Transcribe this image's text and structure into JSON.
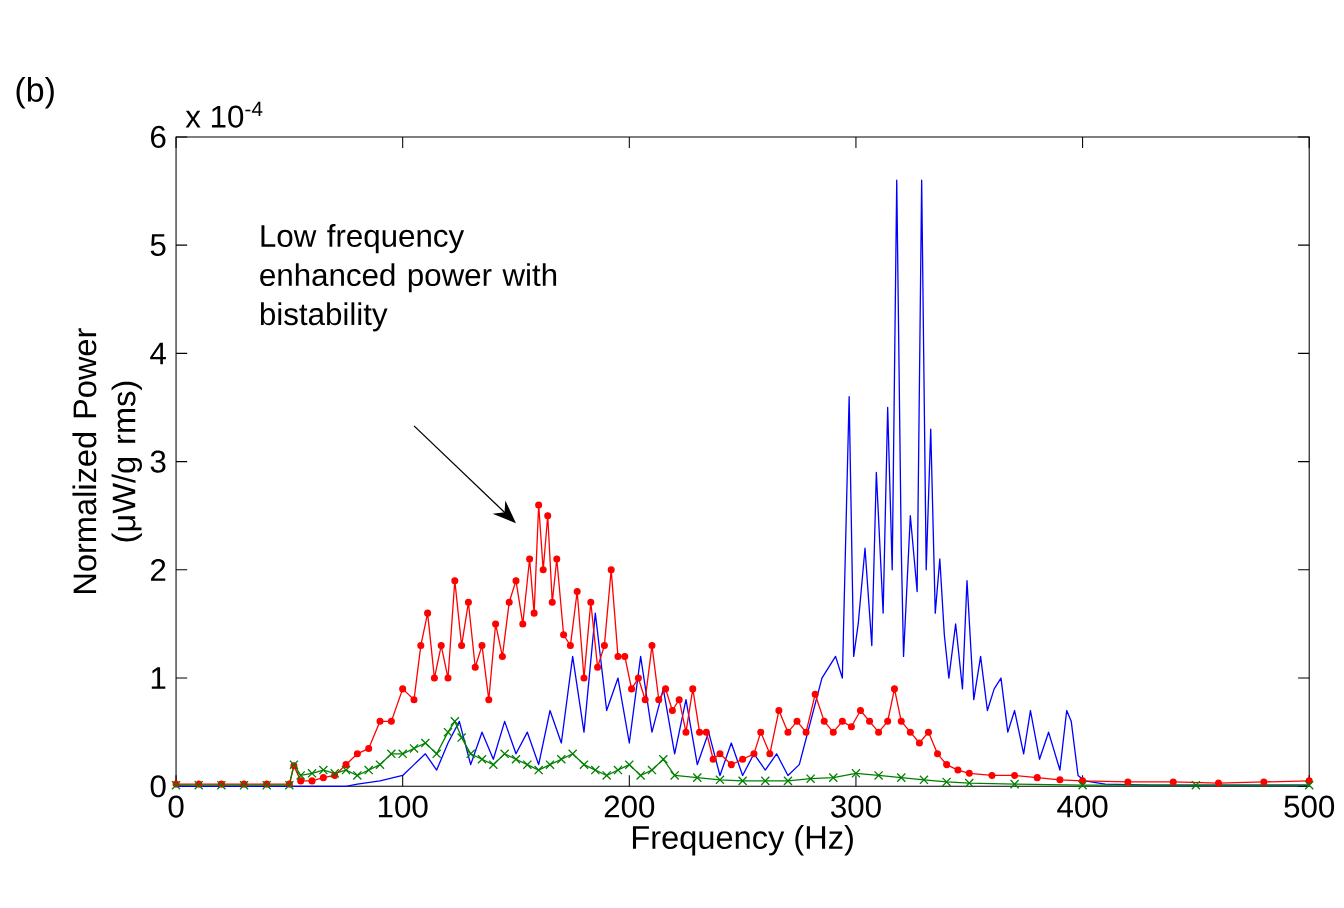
{
  "chart_data": {
    "type": "line",
    "title": "(b)",
    "xlabel": "Frequency (Hz)",
    "ylabel": "Normalized Power (μW/g rms)",
    "annotations": [
      "Low frequency enhanced power with bistability",
      "x 10$^{-4}$"
    ],
    "xlim": [
      0,
      500
    ],
    "ylim": [
      0,
      6
    ],
    "xticks": [
      0,
      100,
      200,
      300,
      400,
      500
    ],
    "yticks": [
      0,
      1,
      2,
      3,
      4,
      5,
      6
    ],
    "grid": false,
    "line_style": "solid",
    "series": [
      {
        "color": "#0000ff",
        "marker": "none",
        "x": [
          0,
          75,
          80,
          90,
          100,
          105,
          110,
          115,
          120,
          125,
          130,
          135,
          140,
          145,
          150,
          155,
          160,
          165,
          170,
          175,
          180,
          185,
          190,
          195,
          200,
          205,
          210,
          215,
          220,
          225,
          230,
          235,
          240,
          245,
          250,
          255,
          260,
          265,
          270,
          275,
          280,
          285,
          291,
          294,
          297,
          299,
          301,
          304,
          307,
          309,
          312,
          314,
          316,
          318,
          320,
          321,
          324,
          327,
          329,
          331,
          333,
          335,
          337,
          339,
          341,
          344,
          347,
          349,
          352,
          355,
          358,
          361,
          364,
          367,
          370,
          374,
          377,
          381,
          385,
          390,
          393,
          395,
          398,
          401,
          410,
          430,
          500
        ],
        "values": [
          0,
          0,
          0.02,
          0.05,
          0.1,
          0.2,
          0.3,
          0.15,
          0.4,
          0.6,
          0.2,
          0.5,
          0.25,
          0.6,
          0.3,
          0.5,
          0.2,
          0.7,
          0.4,
          1.2,
          0.5,
          1.6,
          0.7,
          1.0,
          0.4,
          1.2,
          0.5,
          0.9,
          0.3,
          0.8,
          0.2,
          0.5,
          0.1,
          0.4,
          0.1,
          0.3,
          0.15,
          0.3,
          0.1,
          0.2,
          0.6,
          1.0,
          1.2,
          1.0,
          3.6,
          1.2,
          1.5,
          2.2,
          1.3,
          2.9,
          1.6,
          3.5,
          2.0,
          5.6,
          2.2,
          1.2,
          2.5,
          1.8,
          5.6,
          2.0,
          3.3,
          1.6,
          2.1,
          1.4,
          1.0,
          1.5,
          0.9,
          1.9,
          0.8,
          1.2,
          0.7,
          0.9,
          1.0,
          0.5,
          0.7,
          0.3,
          0.7,
          0.25,
          0.5,
          0.15,
          0.7,
          0.6,
          0.1,
          0.05,
          0.02,
          0.01,
          0.01
        ]
      },
      {
        "color": "#ff0000",
        "marker": "circle",
        "x": [
          0,
          10,
          20,
          30,
          40,
          50,
          52,
          55,
          60,
          65,
          70,
          75,
          80,
          85,
          90,
          95,
          100,
          105,
          108,
          111,
          114,
          117,
          120,
          123,
          126,
          129,
          132,
          135,
          138,
          141,
          144,
          147,
          150,
          153,
          156,
          158,
          160,
          162,
          164,
          166,
          168,
          171,
          174,
          177,
          180,
          183,
          186,
          189,
          192,
          195,
          198,
          201,
          204,
          207,
          210,
          213,
          216,
          219,
          222,
          225,
          228,
          231,
          234,
          237,
          240,
          245,
          250,
          255,
          258,
          262,
          266,
          270,
          274,
          278,
          282,
          286,
          290,
          294,
          298,
          302,
          306,
          310,
          314,
          317,
          320,
          324,
          328,
          332,
          336,
          340,
          345,
          350,
          360,
          370,
          380,
          390,
          400,
          420,
          440,
          460,
          480,
          500
        ],
        "values": [
          0.02,
          0.02,
          0.02,
          0.02,
          0.02,
          0.02,
          0.19,
          0.05,
          0.05,
          0.08,
          0.1,
          0.2,
          0.3,
          0.35,
          0.6,
          0.6,
          0.9,
          0.8,
          1.3,
          1.6,
          1.0,
          1.3,
          1.0,
          1.9,
          1.3,
          1.7,
          1.1,
          1.3,
          0.8,
          1.5,
          1.2,
          1.7,
          1.9,
          1.5,
          2.1,
          1.6,
          2.6,
          2.0,
          2.5,
          1.7,
          2.1,
          1.4,
          1.3,
          1.8,
          1.0,
          1.7,
          1.1,
          1.3,
          2.0,
          1.2,
          1.2,
          0.9,
          1.0,
          0.8,
          1.3,
          0.8,
          0.9,
          0.7,
          0.8,
          0.5,
          0.9,
          0.5,
          0.5,
          0.25,
          0.3,
          0.2,
          0.25,
          0.3,
          0.5,
          0.3,
          0.7,
          0.5,
          0.6,
          0.5,
          0.85,
          0.6,
          0.5,
          0.6,
          0.55,
          0.7,
          0.6,
          0.5,
          0.6,
          0.9,
          0.6,
          0.5,
          0.4,
          0.5,
          0.3,
          0.2,
          0.15,
          0.12,
          0.1,
          0.1,
          0.08,
          0.06,
          0.05,
          0.04,
          0.04,
          0.03,
          0.04,
          0.05
        ]
      },
      {
        "color": "#008000",
        "marker": "cross",
        "x": [
          0,
          10,
          20,
          30,
          40,
          50,
          52,
          55,
          60,
          65,
          70,
          75,
          80,
          85,
          90,
          95,
          100,
          105,
          110,
          115,
          120,
          123,
          126,
          130,
          135,
          140,
          145,
          150,
          155,
          160,
          165,
          170,
          175,
          180,
          185,
          190,
          195,
          200,
          205,
          210,
          215,
          220,
          230,
          240,
          250,
          260,
          270,
          280,
          290,
          300,
          310,
          320,
          330,
          340,
          350,
          370,
          400,
          450,
          500
        ],
        "values": [
          0.01,
          0.01,
          0.01,
          0.01,
          0.01,
          0.01,
          0.2,
          0.1,
          0.12,
          0.15,
          0.12,
          0.15,
          0.1,
          0.15,
          0.2,
          0.3,
          0.3,
          0.35,
          0.4,
          0.3,
          0.5,
          0.6,
          0.45,
          0.3,
          0.25,
          0.2,
          0.3,
          0.25,
          0.2,
          0.15,
          0.2,
          0.25,
          0.3,
          0.2,
          0.15,
          0.1,
          0.15,
          0.2,
          0.1,
          0.15,
          0.25,
          0.1,
          0.08,
          0.06,
          0.05,
          0.05,
          0.05,
          0.07,
          0.08,
          0.12,
          0.1,
          0.08,
          0.06,
          0.04,
          0.03,
          0.02,
          0.01,
          0.01,
          0.01
        ]
      }
    ]
  }
}
